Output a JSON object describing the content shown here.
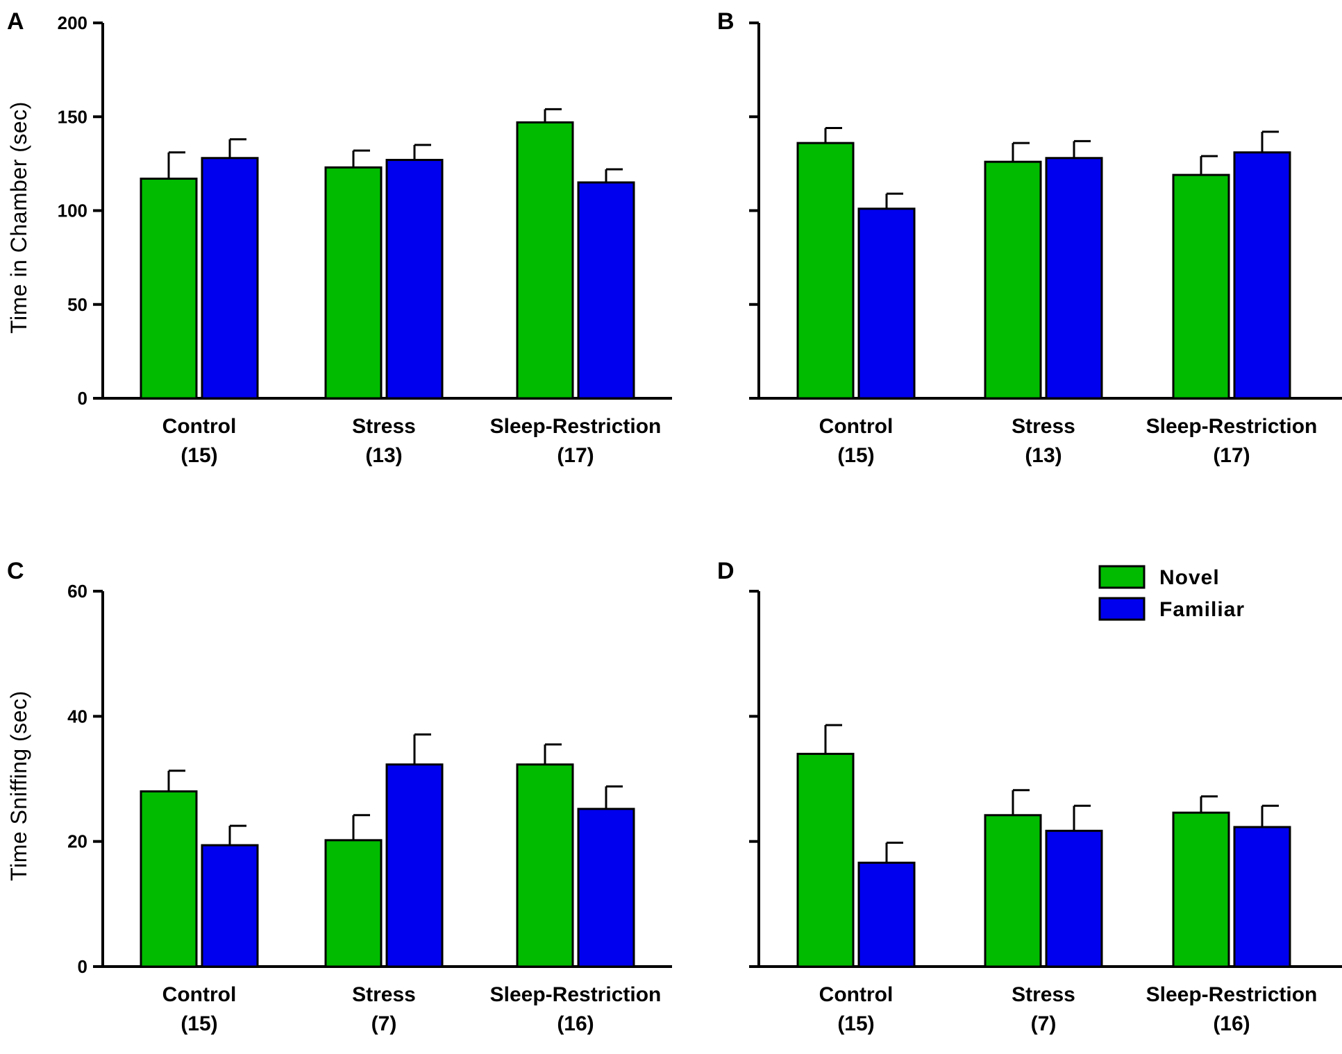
{
  "colors": {
    "novel": "#00bb00",
    "familiar": "#0000ee",
    "axis": "#000000"
  },
  "legend": {
    "novel_label": "Novel",
    "familiar_label": "Familiar"
  },
  "chart_data": [
    {
      "panel": "A",
      "type": "bar",
      "ylabel": "Time in Chamber (sec)",
      "ylim": [
        0,
        200
      ],
      "yticks": [
        0,
        50,
        100,
        150,
        200
      ],
      "show_tick_labels": true,
      "categories": [
        {
          "name": "Control",
          "n": "(15)"
        },
        {
          "name": "Stress",
          "n": "(13)"
        },
        {
          "name": "Sleep-Restriction",
          "n": "(17)"
        }
      ],
      "series": [
        {
          "name": "Novel",
          "values": [
            117,
            123,
            147
          ],
          "errors": [
            14,
            9,
            7
          ]
        },
        {
          "name": "Familiar",
          "values": [
            128,
            127,
            115
          ],
          "errors": [
            10,
            8,
            7
          ]
        }
      ]
    },
    {
      "panel": "B",
      "type": "bar",
      "ylabel": "",
      "ylim": [
        0,
        200
      ],
      "yticks": [
        0,
        50,
        100,
        150,
        200
      ],
      "show_tick_labels": false,
      "categories": [
        {
          "name": "Control",
          "n": "(15)"
        },
        {
          "name": "Stress",
          "n": "(13)"
        },
        {
          "name": "Sleep-Restriction",
          "n": "(17)"
        }
      ],
      "series": [
        {
          "name": "Novel",
          "values": [
            136,
            126,
            119
          ],
          "errors": [
            8,
            10,
            10
          ]
        },
        {
          "name": "Familiar",
          "values": [
            101,
            128,
            131
          ],
          "errors": [
            8,
            9,
            11
          ]
        }
      ]
    },
    {
      "panel": "C",
      "type": "bar",
      "ylabel": "Time Sniffing (sec)",
      "ylim": [
        0,
        60
      ],
      "yticks": [
        0,
        20,
        40,
        60
      ],
      "show_tick_labels": true,
      "categories": [
        {
          "name": "Control",
          "n": "(15)"
        },
        {
          "name": "Stress",
          "n": "(7)"
        },
        {
          "name": "Sleep-Restriction",
          "n": "(16)"
        }
      ],
      "series": [
        {
          "name": "Novel",
          "values": [
            28,
            20.2,
            32.3
          ],
          "errors": [
            3.3,
            4,
            3.2
          ]
        },
        {
          "name": "Familiar",
          "values": [
            19.4,
            32.3,
            25.2
          ],
          "errors": [
            3.1,
            4.8,
            3.6
          ]
        }
      ]
    },
    {
      "panel": "D",
      "type": "bar",
      "ylabel": "",
      "ylim": [
        0,
        60
      ],
      "yticks": [
        0,
        20,
        40,
        60
      ],
      "show_tick_labels": false,
      "categories": [
        {
          "name": "Control",
          "n": "(15)"
        },
        {
          "name": "Stress",
          "n": "(7)"
        },
        {
          "name": "Sleep-Restriction",
          "n": "(16)"
        }
      ],
      "series": [
        {
          "name": "Novel",
          "values": [
            34,
            24.2,
            24.6
          ],
          "errors": [
            4.6,
            4,
            2.6
          ]
        },
        {
          "name": "Familiar",
          "values": [
            16.6,
            21.7,
            22.3
          ],
          "errors": [
            3.2,
            4,
            3.4
          ]
        }
      ]
    }
  ]
}
